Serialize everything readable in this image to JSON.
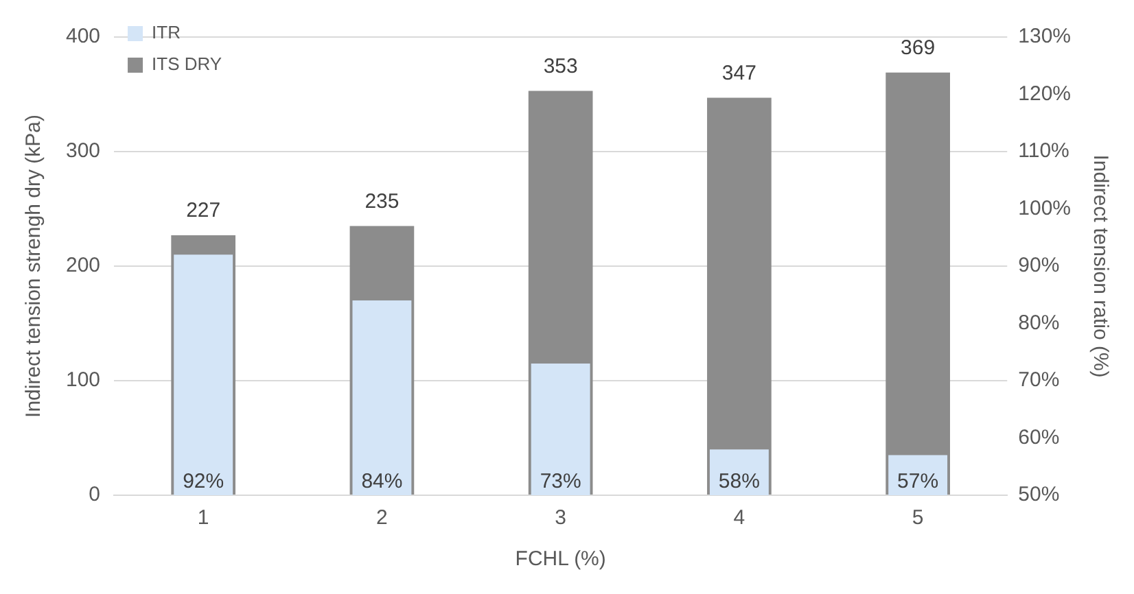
{
  "chart_data": {
    "type": "bar",
    "xlabel": "FCHL (%)",
    "ylabel": "Indirect tension strengh dry (kPa)",
    "y2label": "Indirect tension ratio (%)",
    "categories": [
      "1",
      "2",
      "3",
      "4",
      "5"
    ],
    "series": [
      {
        "name": "ITS DRY",
        "color": "#8c8c8c",
        "values": [
          227,
          235,
          353,
          347,
          369
        ],
        "value_labels": [
          "227",
          "235",
          "353",
          "347",
          "369"
        ]
      },
      {
        "name": "ITR",
        "color": "#d4e5f7",
        "axis": "y2",
        "values": [
          92,
          84,
          73,
          58,
          57
        ],
        "value_labels": [
          "92%",
          "84%",
          "73%",
          "58%",
          "57%"
        ]
      }
    ],
    "ylim": [
      0,
      400
    ],
    "yticks": [
      0,
      100,
      200,
      300,
      400
    ],
    "y2lim": [
      50,
      130
    ],
    "y2ticks": [
      {
        "value": 50,
        "label": "50%"
      },
      {
        "value": 60,
        "label": "60%"
      },
      {
        "value": 70,
        "label": "70%"
      },
      {
        "value": 80,
        "label": "80%"
      },
      {
        "value": 90,
        "label": "90%"
      },
      {
        "value": 100,
        "label": "100%"
      },
      {
        "value": 110,
        "label": "110%"
      },
      {
        "value": 120,
        "label": "120%"
      },
      {
        "value": 130,
        "label": "130%"
      }
    ],
    "grid": "y",
    "legend": "top left"
  }
}
